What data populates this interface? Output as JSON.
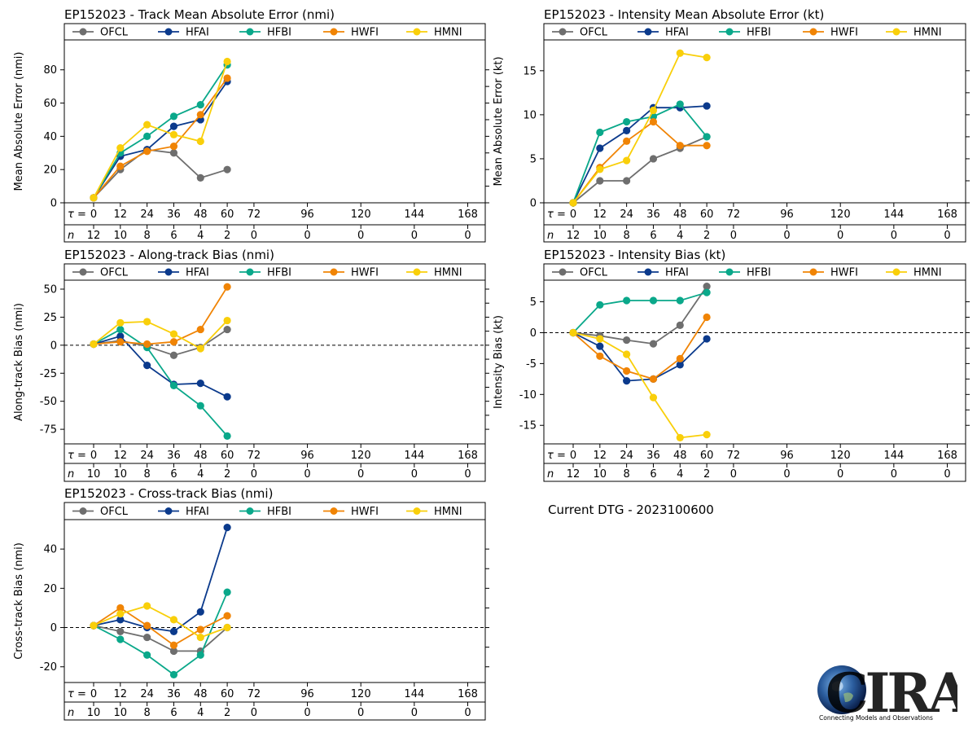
{
  "colors": {
    "OFCL": "#6e6e6e",
    "HFAI": "#0b3a8c",
    "HFBI": "#0aa88a",
    "HWFI": "#f08405",
    "HMNI": "#f9cf0a"
  },
  "tau_label": "τ = ",
  "n_label": "n",
  "dtg_text": "Current DTG - 2023100600",
  "logo": {
    "text": "CIRA",
    "tagline": "Connecting Models and Observations"
  },
  "legend": [
    "OFCL",
    "HFAI",
    "HFBI",
    "HWFI",
    "HMNI"
  ],
  "chart_data": [
    {
      "id": "track-mae",
      "type": "line",
      "title": "EP152023 - Track Mean Absolute Error (nmi)",
      "ylabel": "Mean Absolute Error (nmi)",
      "ylim": [
        0,
        98
      ],
      "yticks": [
        0,
        20,
        40,
        60,
        80
      ],
      "zero_line": false,
      "tau": [
        0,
        12,
        24,
        36,
        48,
        60,
        72,
        96,
        120,
        144,
        168
      ],
      "n": [
        12,
        10,
        8,
        6,
        4,
        2,
        0,
        0,
        0,
        0,
        0
      ],
      "x": [
        0,
        12,
        24,
        36,
        48,
        60
      ],
      "series": [
        {
          "name": "OFCL",
          "values": [
            3,
            20,
            32,
            30,
            15,
            20
          ]
        },
        {
          "name": "HFAI",
          "values": [
            3,
            28,
            32,
            46,
            50,
            73
          ]
        },
        {
          "name": "HFBI",
          "values": [
            3,
            30,
            40,
            52,
            59,
            83
          ]
        },
        {
          "name": "HWFI",
          "values": [
            3,
            22,
            31,
            34,
            53,
            75
          ]
        },
        {
          "name": "HMNI",
          "values": [
            3,
            33,
            47,
            41,
            37,
            85
          ]
        }
      ]
    },
    {
      "id": "intensity-mae",
      "type": "line",
      "title": "EP152023 - Intensity Mean Absolute Error (kt)",
      "ylabel": "Mean Absolute Error (kt)",
      "ylim": [
        0,
        18.5
      ],
      "yticks": [
        0,
        5,
        10,
        15
      ],
      "zero_line": false,
      "tau": [
        0,
        12,
        24,
        36,
        48,
        60,
        72,
        96,
        120,
        144,
        168
      ],
      "n": [
        12,
        10,
        8,
        6,
        4,
        2,
        0,
        0,
        0,
        0,
        0
      ],
      "x": [
        0,
        12,
        24,
        36,
        48,
        60
      ],
      "series": [
        {
          "name": "OFCL",
          "values": [
            0,
            2.5,
            2.5,
            5.0,
            6.2,
            7.5
          ]
        },
        {
          "name": "HFAI",
          "values": [
            0,
            6.2,
            8.2,
            10.8,
            10.8,
            11.0
          ]
        },
        {
          "name": "HFBI",
          "values": [
            0,
            8.0,
            9.2,
            9.8,
            11.2,
            7.5
          ]
        },
        {
          "name": "HWFI",
          "values": [
            0,
            4.0,
            7.0,
            9.2,
            6.5,
            6.5
          ]
        },
        {
          "name": "HMNI",
          "values": [
            0,
            3.8,
            4.8,
            10.5,
            17.0,
            16.5
          ]
        }
      ]
    },
    {
      "id": "along-track-bias",
      "type": "line",
      "title": "EP152023 - Along-track Bias (nmi)",
      "ylabel": "Along-track Bias (nmi)",
      "ylim": [
        -88,
        58
      ],
      "yticks": [
        -75,
        -50,
        -25,
        0,
        25,
        50
      ],
      "zero_line": true,
      "tau": [
        0,
        12,
        24,
        36,
        48,
        60,
        72,
        96,
        120,
        144,
        168
      ],
      "n": [
        10,
        10,
        8,
        6,
        4,
        2,
        0,
        0,
        0,
        0,
        0
      ],
      "x": [
        0,
        12,
        24,
        36,
        48,
        60
      ],
      "series": [
        {
          "name": "OFCL",
          "values": [
            1,
            4,
            -1,
            -9,
            -2,
            14
          ]
        },
        {
          "name": "HFAI",
          "values": [
            1,
            8,
            -18,
            -35,
            -34,
            -46
          ]
        },
        {
          "name": "HFBI",
          "values": [
            1,
            14,
            -2,
            -36,
            -54,
            -81
          ]
        },
        {
          "name": "HWFI",
          "values": [
            1,
            3,
            1,
            3,
            14,
            52
          ]
        },
        {
          "name": "HMNI",
          "values": [
            1,
            20,
            21,
            10,
            -3,
            22
          ]
        }
      ]
    },
    {
      "id": "intensity-bias",
      "type": "line",
      "title": "EP152023 - Intensity Bias (kt)",
      "ylabel": "Intensity Bias (kt)",
      "ylim": [
        -18,
        8.5
      ],
      "yticks": [
        -15,
        -10,
        -5,
        0,
        5
      ],
      "zero_line": true,
      "tau": [
        0,
        12,
        24,
        36,
        48,
        60,
        72,
        96,
        120,
        144,
        168
      ],
      "n": [
        12,
        10,
        8,
        6,
        4,
        2,
        0,
        0,
        0,
        0,
        0
      ],
      "x": [
        0,
        12,
        24,
        36,
        48,
        60
      ],
      "series": [
        {
          "name": "OFCL",
          "values": [
            0,
            -0.5,
            -1.2,
            -1.8,
            1.2,
            7.5
          ]
        },
        {
          "name": "HFAI",
          "values": [
            0,
            -2.2,
            -7.8,
            -7.5,
            -5.2,
            -1.0
          ]
        },
        {
          "name": "HFBI",
          "values": [
            0,
            4.5,
            5.2,
            5.2,
            5.2,
            6.5
          ]
        },
        {
          "name": "HWFI",
          "values": [
            0,
            -3.8,
            -6.2,
            -7.5,
            -4.2,
            2.5
          ]
        },
        {
          "name": "HMNI",
          "values": [
            0,
            -1.0,
            -3.5,
            -10.5,
            -17.0,
            -16.5
          ]
        }
      ]
    },
    {
      "id": "cross-track-bias",
      "type": "line",
      "title": "EP152023 - Cross-track Bias (nmi)",
      "ylabel": "Cross-track Bias (nmi)",
      "ylim": [
        -28,
        55
      ],
      "yticks": [
        -20,
        0,
        20,
        40
      ],
      "zero_line": true,
      "tau": [
        0,
        12,
        24,
        36,
        48,
        60,
        72,
        96,
        120,
        144,
        168
      ],
      "n": [
        10,
        10,
        8,
        6,
        4,
        2,
        0,
        0,
        0,
        0,
        0
      ],
      "x": [
        0,
        12,
        24,
        36,
        48,
        60
      ],
      "series": [
        {
          "name": "OFCL",
          "values": [
            1,
            -2,
            -5,
            -12,
            -12,
            0
          ]
        },
        {
          "name": "HFAI",
          "values": [
            1,
            4,
            0,
            -2,
            8,
            51
          ]
        },
        {
          "name": "HFBI",
          "values": [
            1,
            -6,
            -14,
            -24,
            -14,
            18
          ]
        },
        {
          "name": "HWFI",
          "values": [
            1,
            10,
            1,
            -9,
            -1,
            6
          ]
        },
        {
          "name": "HMNI",
          "values": [
            1,
            7,
            11,
            4,
            -5,
            0
          ]
        }
      ]
    }
  ]
}
